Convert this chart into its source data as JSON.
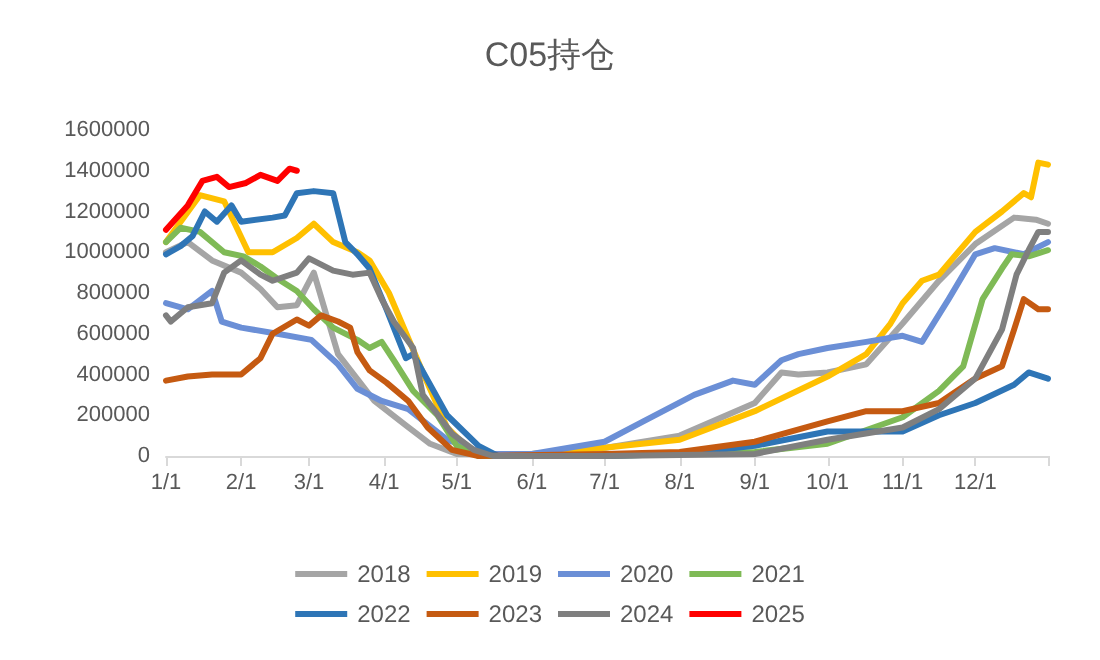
{
  "chart_data": {
    "type": "line",
    "title": "C05持仓",
    "xlim": [
      "--01-01",
      "--12-31"
    ],
    "xticks": [
      {
        "value": "--01-01",
        "label": "1/1"
      },
      {
        "value": "--02-01",
        "label": "2/1"
      },
      {
        "value": "--03-01",
        "label": "3/1"
      },
      {
        "value": "--04-01",
        "label": "4/1"
      },
      {
        "value": "--05-01",
        "label": "5/1"
      },
      {
        "value": "--06-01",
        "label": "6/1"
      },
      {
        "value": "--07-01",
        "label": "7/1"
      },
      {
        "value": "--08-01",
        "label": "8/1"
      },
      {
        "value": "--09-01",
        "label": "9/1"
      },
      {
        "value": "--10-01",
        "label": "10/1"
      },
      {
        "value": "--11-01",
        "label": "11/1"
      },
      {
        "value": "--12-01",
        "label": "12/1"
      },
      {
        "value": "--12-31",
        "label": null
      }
    ],
    "ylim": [
      0,
      1600000
    ],
    "yticks": [
      0,
      200000,
      400000,
      600000,
      800000,
      1000000,
      1200000,
      1400000,
      1600000
    ],
    "grid": false,
    "legend": "bottom",
    "marker": "none",
    "line_style": "solid",
    "series": [
      {
        "name": "2018",
        "color": "#a5a5a5",
        "x": [
          "--01-01",
          "--01-10",
          "--01-20",
          "--02-01",
          "--02-09",
          "--02-16",
          "--02-24",
          "--03-03",
          "--03-13",
          "--03-28",
          "--04-10",
          "--04-20",
          "--05-01",
          "--06-01",
          "--07-01",
          "--08-01",
          "--09-01",
          "--09-12",
          "--09-19",
          "--10-01",
          "--10-17",
          "--11-01",
          "--11-16",
          "--12-01",
          "--12-17",
          "--12-26",
          "--12-31"
        ],
        "values": [
          1000000,
          1050000,
          960000,
          900000,
          820000,
          730000,
          740000,
          900000,
          500000,
          270000,
          150000,
          60000,
          10000,
          10000,
          40000,
          100000,
          260000,
          410000,
          400000,
          410000,
          450000,
          650000,
          860000,
          1040000,
          1170000,
          1160000,
          1140000
        ]
      },
      {
        "name": "2019",
        "color": "#ffc000",
        "x": [
          "--01-01",
          "--01-15",
          "--01-25",
          "--02-04",
          "--02-14",
          "--02-24",
          "--03-03",
          "--03-11",
          "--03-21",
          "--03-26",
          "--04-03",
          "--04-17",
          "--04-27",
          "--05-08",
          "--06-01",
          "--07-01",
          "--08-01",
          "--09-01",
          "--10-01",
          "--10-17",
          "--10-27",
          "--11-01",
          "--11-09",
          "--11-16",
          "--12-01",
          "--12-12",
          "--12-21",
          "--12-24",
          "--12-27",
          "--12-31"
        ],
        "values": [
          1050000,
          1280000,
          1250000,
          1000000,
          1000000,
          1070000,
          1140000,
          1050000,
          1000000,
          960000,
          800000,
          410000,
          140000,
          10000,
          10000,
          40000,
          80000,
          220000,
          390000,
          500000,
          650000,
          750000,
          860000,
          890000,
          1100000,
          1200000,
          1290000,
          1270000,
          1440000,
          1430000
        ]
      },
      {
        "name": "2020",
        "color": "#6b8fd6",
        "x": [
          "--01-01",
          "--01-10",
          "--01-20",
          "--01-24",
          "--02-01",
          "--02-16",
          "--03-02",
          "--03-13",
          "--03-21",
          "--03-31",
          "--04-11",
          "--04-27",
          "--05-13",
          "--06-01",
          "--07-01",
          "--07-17",
          "--08-07",
          "--08-23",
          "--09-01",
          "--09-12",
          "--09-19",
          "--10-01",
          "--10-17",
          "--11-01",
          "--11-09",
          "--11-20",
          "--12-01",
          "--12-09",
          "--12-21",
          "--12-31"
        ],
        "values": [
          750000,
          720000,
          810000,
          660000,
          630000,
          600000,
          570000,
          450000,
          330000,
          270000,
          230000,
          80000,
          10000,
          10000,
          70000,
          170000,
          300000,
          370000,
          350000,
          470000,
          500000,
          530000,
          560000,
          590000,
          560000,
          770000,
          990000,
          1020000,
          990000,
          1050000
        ]
      },
      {
        "name": "2021",
        "color": "#7fba56",
        "x": [
          "--01-01",
          "--01-07",
          "--01-15",
          "--01-25",
          "--02-02",
          "--02-09",
          "--02-16",
          "--02-24",
          "--03-03",
          "--03-11",
          "--03-21",
          "--03-26",
          "--03-31",
          "--04-05",
          "--04-13",
          "--04-23",
          "--05-01",
          "--05-10",
          "--07-01",
          "--09-01",
          "--10-01",
          "--11-01",
          "--11-16",
          "--11-26",
          "--12-04",
          "--12-12",
          "--12-16",
          "--12-23",
          "--12-31"
        ],
        "values": [
          1050000,
          1120000,
          1100000,
          1000000,
          980000,
          930000,
          870000,
          810000,
          720000,
          630000,
          570000,
          530000,
          560000,
          470000,
          320000,
          200000,
          50000,
          0,
          0,
          20000,
          60000,
          190000,
          320000,
          440000,
          770000,
          920000,
          990000,
          980000,
          1010000
        ]
      },
      {
        "name": "2022",
        "color": "#2e75b6",
        "x": [
          "--01-01",
          "--01-07",
          "--01-12",
          "--01-17",
          "--01-22",
          "--01-28",
          "--02-01",
          "--02-14",
          "--02-19",
          "--02-24",
          "--03-03",
          "--03-11",
          "--03-16",
          "--03-21",
          "--03-26",
          "--04-02",
          "--04-10",
          "--04-13",
          "--04-27",
          "--05-10",
          "--05-18",
          "--07-01",
          "--08-01",
          "--09-01",
          "--10-01",
          "--11-01",
          "--11-16",
          "--12-01",
          "--12-17",
          "--12-23",
          "--12-31"
        ],
        "values": [
          990000,
          1030000,
          1080000,
          1200000,
          1150000,
          1230000,
          1150000,
          1170000,
          1180000,
          1290000,
          1300000,
          1290000,
          1050000,
          990000,
          920000,
          720000,
          480000,
          500000,
          200000,
          50000,
          0,
          0,
          10000,
          50000,
          120000,
          120000,
          200000,
          260000,
          350000,
          410000,
          380000
        ]
      },
      {
        "name": "2023",
        "color": "#c55a11",
        "x": [
          "--01-01",
          "--01-10",
          "--01-20",
          "--02-01",
          "--02-09",
          "--02-14",
          "--02-24",
          "--03-01",
          "--03-06",
          "--03-13",
          "--03-18",
          "--03-21",
          "--03-26",
          "--04-02",
          "--04-11",
          "--04-19",
          "--04-29",
          "--05-10",
          "--07-01",
          "--08-01",
          "--09-01",
          "--10-01",
          "--10-17",
          "--11-01",
          "--11-16",
          "--12-01",
          "--12-12",
          "--12-17",
          "--12-21",
          "--12-27",
          "--12-31"
        ],
        "values": [
          370000,
          390000,
          400000,
          400000,
          480000,
          600000,
          670000,
          640000,
          690000,
          660000,
          630000,
          510000,
          420000,
          360000,
          270000,
          140000,
          30000,
          0,
          10000,
          20000,
          70000,
          170000,
          220000,
          220000,
          260000,
          380000,
          440000,
          620000,
          770000,
          720000,
          720000
        ]
      },
      {
        "name": "2024",
        "color": "#7f7f7f",
        "x": [
          "--01-01",
          "--01-03",
          "--01-10",
          "--01-20",
          "--01-25",
          "--02-01",
          "--02-09",
          "--02-14",
          "--02-24",
          "--03-01",
          "--03-11",
          "--03-19",
          "--03-26",
          "--03-31",
          "--04-05",
          "--04-13",
          "--04-17",
          "--04-29",
          "--05-08",
          "--05-16",
          "--07-01",
          "--09-01",
          "--10-01",
          "--11-01",
          "--11-16",
          "--12-01",
          "--12-12",
          "--12-18",
          "--12-23",
          "--12-27",
          "--12-31"
        ],
        "values": [
          690000,
          660000,
          730000,
          750000,
          900000,
          960000,
          890000,
          860000,
          900000,
          970000,
          910000,
          890000,
          900000,
          770000,
          660000,
          530000,
          300000,
          110000,
          30000,
          0,
          0,
          10000,
          80000,
          140000,
          230000,
          380000,
          620000,
          890000,
          1010000,
          1100000,
          1100000
        ]
      },
      {
        "name": "2025",
        "color": "#ff0000",
        "x": [
          "--01-01",
          "--01-10",
          "--01-16",
          "--01-22",
          "--01-27",
          "--02-03",
          "--02-09",
          "--02-16",
          "--02-21",
          "--02-24"
        ],
        "values": [
          1110000,
          1230000,
          1350000,
          1370000,
          1320000,
          1340000,
          1380000,
          1350000,
          1410000,
          1400000
        ]
      }
    ]
  }
}
